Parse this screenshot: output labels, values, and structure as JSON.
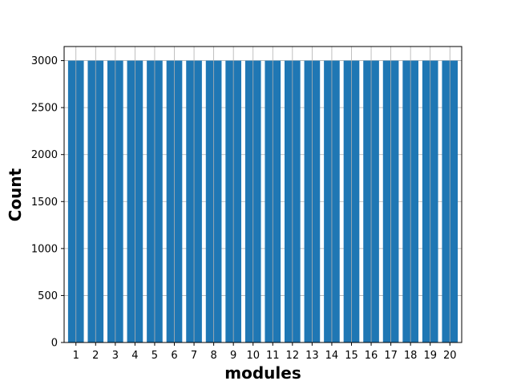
{
  "chart_data": {
    "type": "bar",
    "xlabel": "modules",
    "ylabel": "Count",
    "categories": [
      "1",
      "2",
      "3",
      "4",
      "5",
      "6",
      "7",
      "8",
      "9",
      "10",
      "11",
      "12",
      "13",
      "14",
      "15",
      "16",
      "17",
      "18",
      "19",
      "20"
    ],
    "values": [
      3000,
      3000,
      3000,
      3000,
      3000,
      3000,
      3000,
      3000,
      3000,
      3000,
      3000,
      3000,
      3000,
      3000,
      3000,
      3000,
      3000,
      3000,
      3000,
      3000
    ],
    "ylim": [
      0,
      3150
    ],
    "yticks": [
      0,
      500,
      1000,
      1500,
      2000,
      2500,
      3000
    ],
    "grid": true,
    "bar_color": "#1f77b4",
    "grid_color": "#b0b0b0"
  }
}
